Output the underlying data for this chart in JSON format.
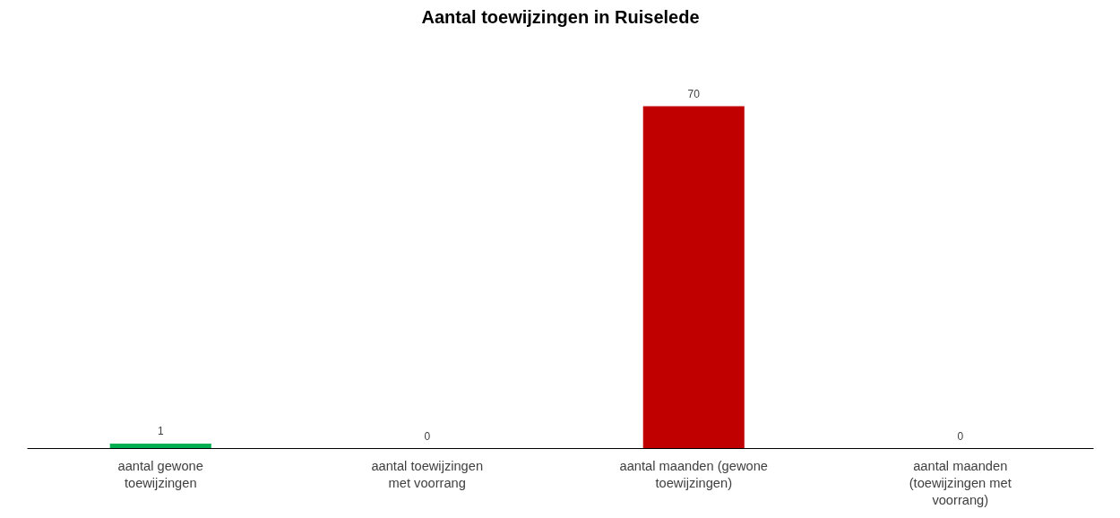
{
  "chart_data": {
    "type": "bar",
    "title": "Aantal toewijzingen in Ruiselede",
    "categories": [
      "aantal gewone toewijzingen",
      "aantal toewijzingen met voorrang",
      "aantal maanden (gewone toewijzingen)",
      "aantal maanden (toewijzingen met voorrang)"
    ],
    "values": [
      1,
      0,
      70,
      0
    ],
    "colors": [
      "#00b050",
      "#00b050",
      "#c00000",
      "#c00000"
    ],
    "data_labels": true
  }
}
